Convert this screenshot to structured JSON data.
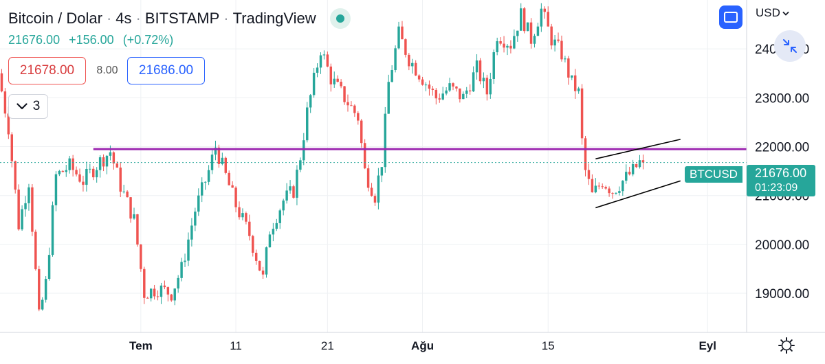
{
  "header": {
    "symbol": "Bitcoin / Dolar",
    "interval": "4s",
    "exchange": "BITSTAMP",
    "source": "TradingView",
    "last": "21676.00",
    "change": "+156.00",
    "change_pct": "(+0.72%)"
  },
  "trade": {
    "bid": "21678.00",
    "spread": "8.00",
    "ask": "21686.00"
  },
  "indicators": {
    "count": "3"
  },
  "currency": "USD",
  "price_tag": {
    "symbol": "BTCUSD",
    "price": "21676.00",
    "countdown": "01:23:09"
  },
  "colors": {
    "up": "#26a69a",
    "down": "#ef5350",
    "level_line": "#9c27b0",
    "channel": "#000000",
    "accent": "#2962ff",
    "grid": "#eef0f3"
  },
  "icons": [
    "live-dot-icon",
    "chevron-down-icon",
    "fullscreen-icon",
    "collapse-arrows-icon",
    "settings-gear-icon"
  ],
  "chart_data": {
    "type": "candlestick",
    "y_ticks": [
      19000,
      20000,
      21000,
      22000,
      23000,
      24000
    ],
    "y_tick_labels": [
      "19000.00",
      "20000.00",
      "21000.00",
      "22000.00",
      "23000.00",
      "24000.00"
    ],
    "ylim": [
      18200,
      25000
    ],
    "x_ticks": [
      {
        "label": "Tem",
        "bold": true,
        "i": 41
      },
      {
        "label": "11",
        "bold": false,
        "i": 69
      },
      {
        "label": "21",
        "bold": false,
        "i": 96
      },
      {
        "label": "Ağu",
        "bold": true,
        "i": 124
      },
      {
        "label": "15",
        "bold": false,
        "i": 161
      },
      {
        "label": "Eyl",
        "bold": true,
        "i": 208
      }
    ],
    "bar_count_visible": 220,
    "last_price": 21676,
    "grid": true,
    "keypoints": [
      [
        0,
        23500
      ],
      [
        3,
        22400
      ],
      [
        6,
        20400
      ],
      [
        9,
        21300
      ],
      [
        12,
        18500
      ],
      [
        14,
        19200
      ],
      [
        17,
        21400
      ],
      [
        21,
        21600
      ],
      [
        25,
        21300
      ],
      [
        30,
        21700
      ],
      [
        33,
        21900
      ],
      [
        36,
        21200
      ],
      [
        40,
        20500
      ],
      [
        43,
        19000
      ],
      [
        47,
        19100
      ],
      [
        51,
        19000
      ],
      [
        54,
        19500
      ],
      [
        58,
        20700
      ],
      [
        62,
        21500
      ],
      [
        64,
        22000
      ],
      [
        66,
        21600
      ],
      [
        70,
        20800
      ],
      [
        74,
        20200
      ],
      [
        78,
        19300
      ],
      [
        80,
        20300
      ],
      [
        84,
        20900
      ],
      [
        87,
        21100
      ],
      [
        89,
        21800
      ],
      [
        91,
        22700
      ],
      [
        95,
        24000
      ],
      [
        98,
        23400
      ],
      [
        102,
        23000
      ],
      [
        106,
        22600
      ],
      [
        108,
        21500
      ],
      [
        111,
        21000
      ],
      [
        113,
        21700
      ],
      [
        115,
        23300
      ],
      [
        118,
        24300
      ],
      [
        121,
        23800
      ],
      [
        125,
        23400
      ],
      [
        129,
        23000
      ],
      [
        133,
        23200
      ],
      [
        137,
        23000
      ],
      [
        141,
        23600
      ],
      [
        144,
        23100
      ],
      [
        147,
        24300
      ],
      [
        151,
        24100
      ],
      [
        154,
        24700
      ],
      [
        157,
        24200
      ],
      [
        160,
        24800
      ],
      [
        163,
        24200
      ],
      [
        166,
        23900
      ],
      [
        169,
        23300
      ],
      [
        171,
        23100
      ],
      [
        172,
        22100
      ],
      [
        173,
        21500
      ],
      [
        175,
        21000
      ],
      [
        178,
        21300
      ],
      [
        181,
        21100
      ],
      [
        184,
        21300
      ],
      [
        187,
        21500
      ],
      [
        189,
        21676
      ]
    ],
    "annotations": [
      {
        "type": "horizontal_line",
        "price": 21950,
        "from_i": 27,
        "color": "#9c27b0"
      },
      {
        "type": "trendline",
        "from": [
          175,
          21750
        ],
        "to": [
          200,
          22150
        ],
        "color": "#000000"
      },
      {
        "type": "trendline",
        "from": [
          175,
          20750
        ],
        "to": [
          200,
          21300
        ],
        "color": "#000000"
      }
    ]
  }
}
